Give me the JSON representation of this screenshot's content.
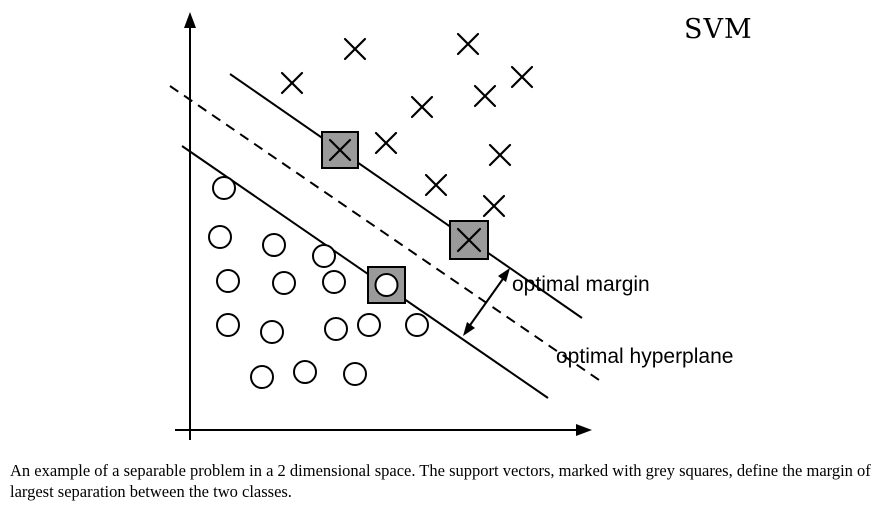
{
  "title": "SVM",
  "labels": {
    "margin": "optimal margin",
    "hyperplane": "optimal hyperplane"
  },
  "caption": "An example of a separable problem in a 2 dimensional space. The support vectors, marked with grey squares, define the margin of largest separation between the two classes.",
  "colors": {
    "support_vector_fill": "#9a9a9a",
    "ink": "#000000"
  },
  "points": {
    "crosses": 12,
    "circles": 17,
    "support_vectors_cross": 2,
    "support_vectors_circle": 1
  }
}
